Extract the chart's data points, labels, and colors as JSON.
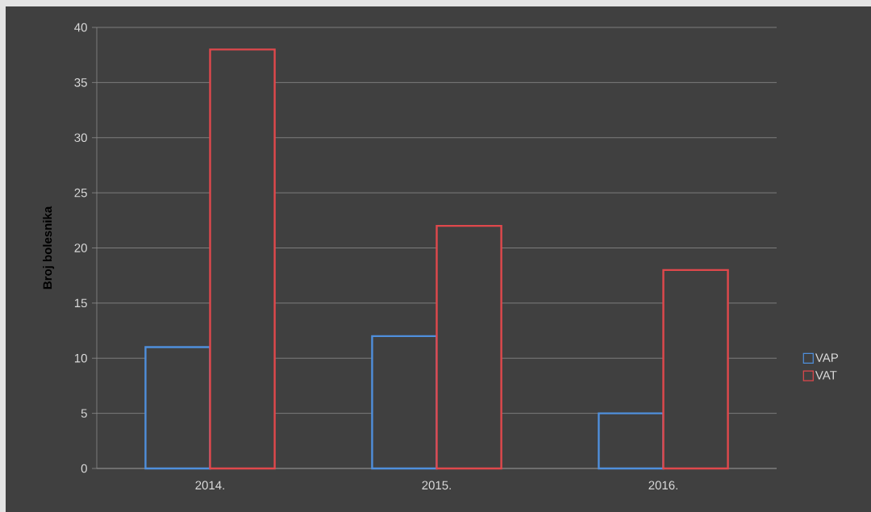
{
  "chart_data": {
    "type": "bar",
    "ylabel": "Broj bolesnika",
    "categories": [
      "2014.",
      "2015.",
      "2016."
    ],
    "series": [
      {
        "name": "VAP",
        "color": "#4f8fdc",
        "values": [
          11,
          12,
          5
        ]
      },
      {
        "name": "VAT",
        "color": "#e0484c",
        "values": [
          38,
          22,
          18
        ]
      }
    ],
    "ylim": [
      0,
      40
    ],
    "yticks": [
      0,
      5,
      10,
      15,
      20,
      25,
      30,
      35,
      40
    ],
    "grid": "y",
    "legend": "right"
  }
}
